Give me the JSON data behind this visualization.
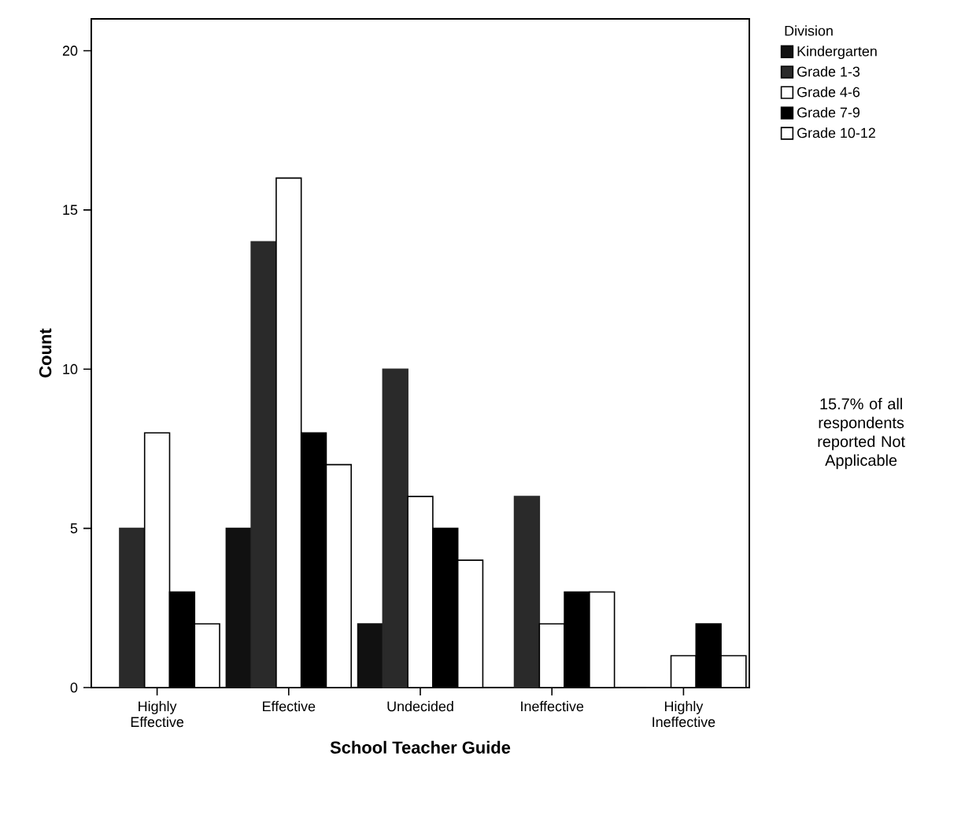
{
  "chart_data": {
    "type": "bar",
    "xlabel": "School Teacher Guide",
    "ylabel": "Count",
    "legend_title": "Division",
    "categories": [
      "Highly Effective",
      "Effective",
      "Undecided",
      "Ineffective",
      "Highly Ineffective"
    ],
    "series": [
      {
        "name": "Kindergarten",
        "color": "#111111",
        "values": [
          0,
          5,
          2,
          0,
          0
        ]
      },
      {
        "name": "Grade 1-3",
        "color": "#2a2a2a",
        "values": [
          5,
          14,
          10,
          6,
          0
        ]
      },
      {
        "name": "Grade 4-6",
        "color": "#ffffff",
        "values": [
          8,
          16,
          6,
          2,
          1
        ]
      },
      {
        "name": "Grade 7-9",
        "color": "#000000",
        "values": [
          3,
          8,
          5,
          3,
          2
        ]
      },
      {
        "name": "Grade 10-12",
        "color": "#ffffff",
        "values": [
          2,
          7,
          4,
          3,
          1
        ]
      }
    ],
    "ylim": [
      0,
      21
    ],
    "yticks": [
      0,
      5,
      10,
      15,
      20
    ],
    "grid": false,
    "legend": "top right",
    "annotations": [
      "15.7% of all respondents reported Not Applicable"
    ]
  }
}
